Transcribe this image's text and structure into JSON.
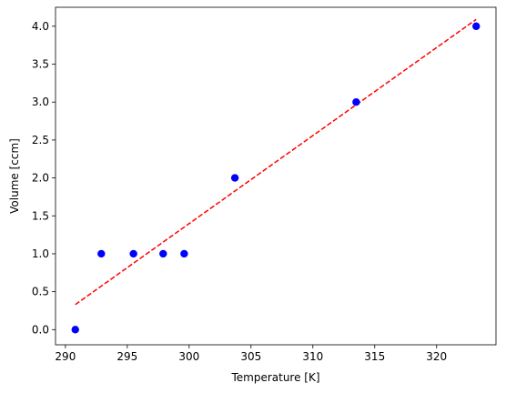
{
  "chart_data": {
    "type": "scatter",
    "title": "",
    "xlabel": "Temperature [K]",
    "ylabel": "Volume [ccm]",
    "xlim": [
      289.2,
      324.8
    ],
    "ylim": [
      -0.2,
      4.25
    ],
    "xticks": [
      290,
      295,
      300,
      305,
      310,
      315,
      320
    ],
    "xtick_labels": [
      "290",
      "295",
      "300",
      "305",
      "310",
      "315",
      "320"
    ],
    "yticks": [
      0.0,
      0.5,
      1.0,
      1.5,
      2.0,
      2.5,
      3.0,
      3.5,
      4.0
    ],
    "ytick_labels": [
      "0.0",
      "0.5",
      "1.0",
      "1.5",
      "2.0",
      "2.5",
      "3.0",
      "3.5",
      "4.0"
    ],
    "grid": false,
    "series": [
      {
        "kind": "scatter",
        "color": "#0000ff",
        "x": [
          290.8,
          292.9,
          295.5,
          297.9,
          299.6,
          303.7,
          313.5,
          323.2
        ],
        "y": [
          0.0,
          1.0,
          1.0,
          1.0,
          1.0,
          2.0,
          3.0,
          4.0
        ]
      },
      {
        "kind": "line",
        "style": "dashed",
        "color": "#ff0000",
        "x": [
          290.8,
          323.2
        ],
        "y": [
          0.33,
          4.09
        ]
      }
    ]
  }
}
